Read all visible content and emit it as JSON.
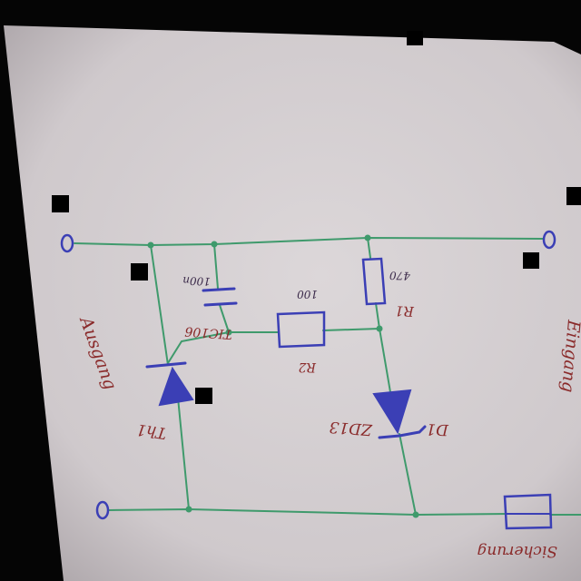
{
  "photo": {
    "paper_color": "#d9d4d6",
    "wire_color": "#3f9a6c",
    "component_color": "#3b3fb5",
    "label_color": "#8a2a2a",
    "note": ""
  },
  "terminals": {
    "left_label": "Ausgang",
    "right_label": "Eingang",
    "bottom_right_label": "Sicherung"
  },
  "components": {
    "c_top_label": "100n",
    "c_name_label": "TIC106",
    "r2_value": "100",
    "r2_name": "R2",
    "r1_value": "470",
    "r1_name": "R1",
    "d1_name": "D1",
    "d1_part": "ZD13",
    "thy_name": "Th1"
  }
}
